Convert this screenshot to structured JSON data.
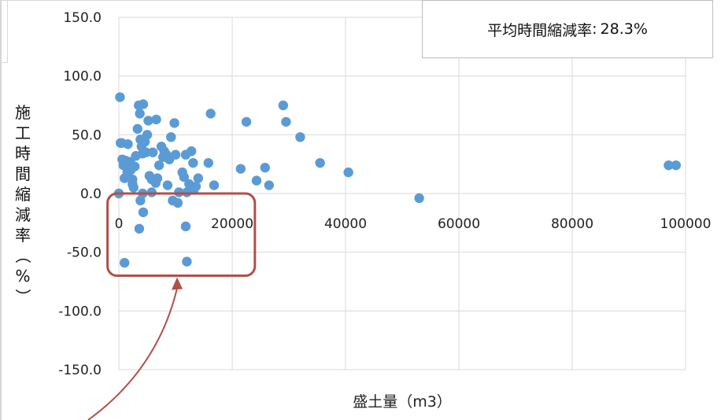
{
  "chart_data": {
    "type": "scatter",
    "title": "",
    "xlabel": "盛土量（m3）",
    "ylabel": "施工時間縮減率（%）",
    "xlim": [
      0,
      100000
    ],
    "ylim": [
      -150,
      150
    ],
    "x_ticks": [
      "0",
      "20000",
      "40000",
      "60000",
      "80000",
      "100000"
    ],
    "y_ticks": [
      "150.0",
      "100.0",
      "50.0",
      "0.0",
      "-50.0",
      "-100.0",
      "-150.0"
    ],
    "grid": "vertical and horizontal gridlines",
    "marker_color": "#5b9bd5",
    "annotation": {
      "label": "平均時間縮減率",
      "separator": ":",
      "value": "28.3%"
    },
    "highlight": {
      "shape": "rounded-rectangle",
      "color": "#b0504a",
      "x_range": [
        -2000,
        24000
      ],
      "y_range": [
        -70,
        0
      ],
      "arrow_color": "#b0504a"
    },
    "points": [
      [
        200,
        82
      ],
      [
        300,
        43
      ],
      [
        500,
        43
      ],
      [
        600,
        29
      ],
      [
        800,
        24
      ],
      [
        1000,
        13
      ],
      [
        1200,
        28
      ],
      [
        1500,
        18
      ],
      [
        1600,
        42
      ],
      [
        2000,
        27
      ],
      [
        2100,
        20
      ],
      [
        2400,
        12
      ],
      [
        2600,
        5
      ],
      [
        2800,
        23
      ],
      [
        3000,
        32
      ],
      [
        3300,
        55
      ],
      [
        3500,
        75
      ],
      [
        3700,
        68
      ],
      [
        3800,
        46
      ],
      [
        4000,
        40
      ],
      [
        4200,
        34
      ],
      [
        4300,
        76
      ],
      [
        4600,
        44
      ],
      [
        4800,
        35
      ],
      [
        5000,
        50
      ],
      [
        5200,
        62
      ],
      [
        5400,
        15
      ],
      [
        5800,
        12
      ],
      [
        6000,
        35
      ],
      [
        6600,
        63
      ],
      [
        6800,
        13
      ],
      [
        7100,
        24
      ],
      [
        7500,
        40
      ],
      [
        7800,
        31
      ],
      [
        8000,
        36
      ],
      [
        8400,
        33
      ],
      [
        8600,
        7
      ],
      [
        9200,
        48
      ],
      [
        9800,
        60
      ],
      [
        10000,
        33
      ],
      [
        10600,
        1
      ],
      [
        11200,
        18
      ],
      [
        11500,
        14
      ],
      [
        11800,
        33
      ],
      [
        12400,
        8
      ],
      [
        12800,
        36
      ],
      [
        13100,
        26
      ],
      [
        13200,
        3
      ],
      [
        14000,
        13
      ],
      [
        15800,
        26
      ],
      [
        16200,
        68
      ],
      [
        16800,
        7
      ],
      [
        21500,
        21
      ],
      [
        22500,
        61
      ],
      [
        24300,
        11
      ],
      [
        25800,
        22
      ],
      [
        26500,
        7
      ],
      [
        29000,
        75
      ],
      [
        29500,
        61
      ],
      [
        32000,
        48
      ],
      [
        35500,
        26
      ],
      [
        40500,
        18
      ],
      [
        53000,
        -4
      ],
      [
        97000,
        24
      ],
      [
        98300,
        24
      ],
      [
        0,
        0
      ],
      [
        5800,
        1
      ],
      [
        4200,
        0
      ],
      [
        3800,
        -6
      ],
      [
        4300,
        -16
      ],
      [
        9500,
        -6
      ],
      [
        10400,
        -8
      ],
      [
        12000,
        1
      ],
      [
        3600,
        -30
      ],
      [
        11800,
        -28
      ],
      [
        1000,
        -59
      ],
      [
        12000,
        -58
      ],
      [
        2400,
        8
      ],
      [
        6500,
        9
      ],
      [
        8900,
        29
      ],
      [
        13600,
        6
      ]
    ]
  }
}
